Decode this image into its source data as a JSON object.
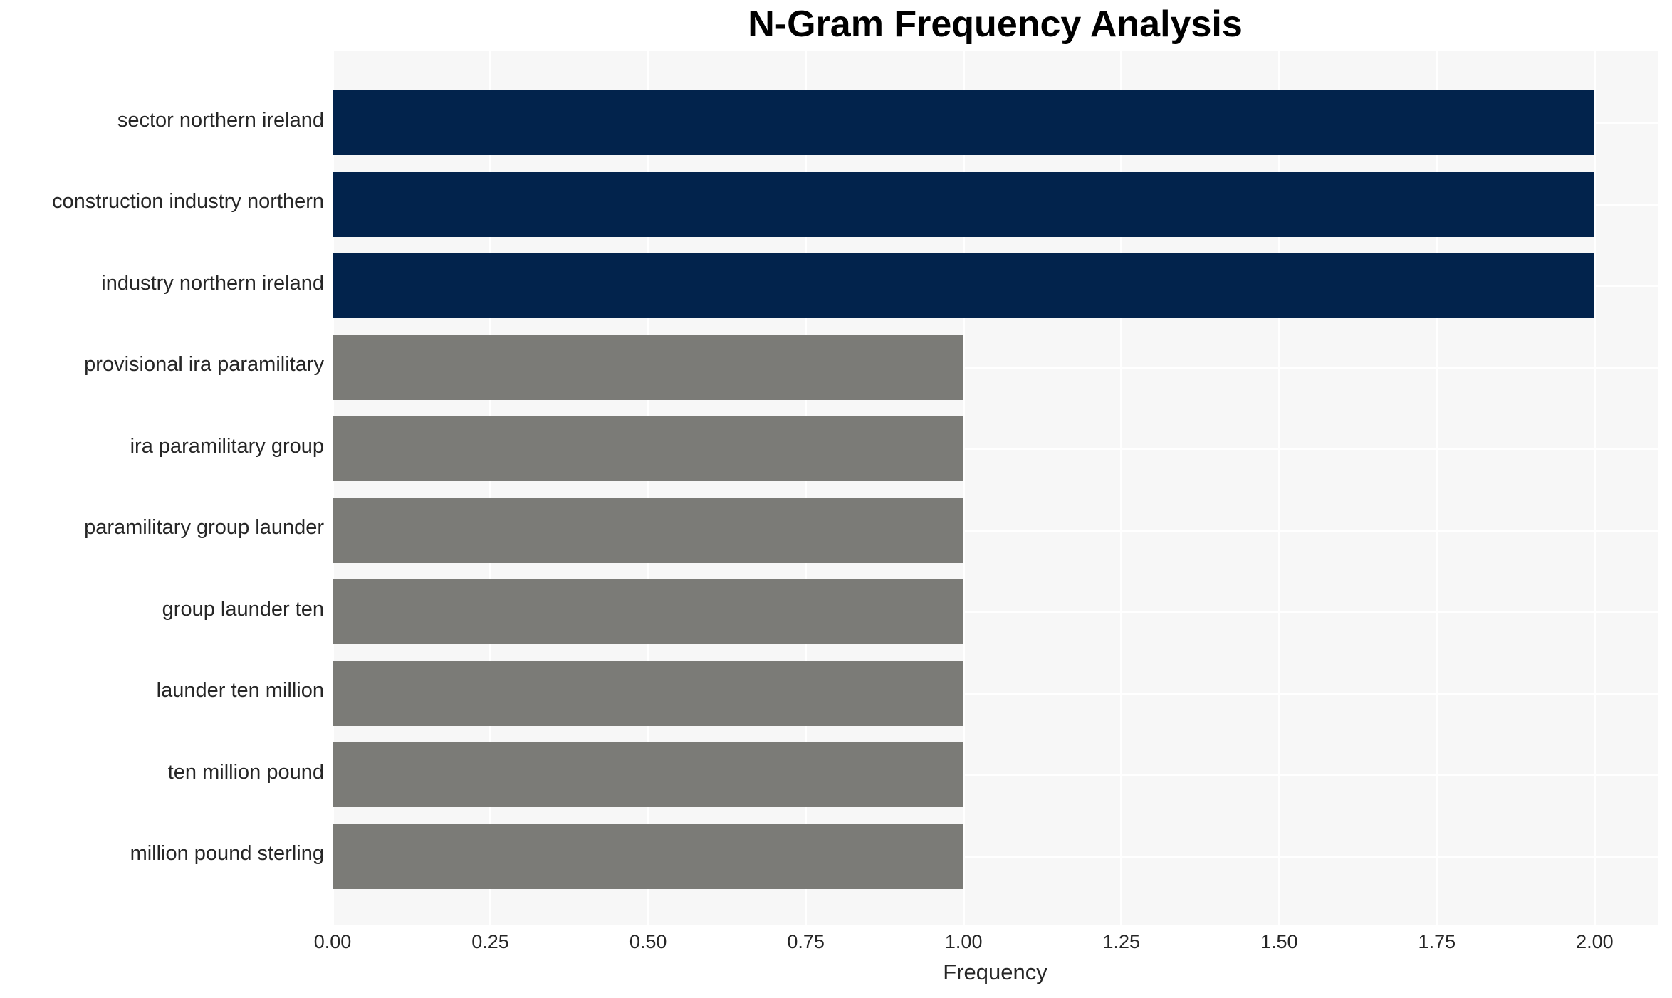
{
  "chart_data": {
    "type": "bar",
    "orientation": "horizontal",
    "title": "N-Gram Frequency Analysis",
    "xlabel": "Frequency",
    "ylabel": "",
    "categories": [
      "sector northern ireland",
      "construction industry northern",
      "industry northern ireland",
      "provisional ira paramilitary",
      "ira paramilitary group",
      "paramilitary group launder",
      "group launder ten",
      "launder ten million",
      "ten million pound",
      "million pound sterling"
    ],
    "values": [
      2,
      2,
      2,
      1,
      1,
      1,
      1,
      1,
      1,
      1
    ],
    "bar_colors": [
      "#02234c",
      "#02234c",
      "#02234c",
      "#7b7b77",
      "#7b7b77",
      "#7b7b77",
      "#7b7b77",
      "#7b7b77",
      "#7b7b77",
      "#7b7b77"
    ],
    "xlim": [
      0,
      2.1
    ],
    "xticks": [
      0,
      0.25,
      0.5,
      0.75,
      1,
      1.25,
      1.5,
      1.75,
      2
    ],
    "xtick_labels": [
      "0.00",
      "0.25",
      "0.50",
      "0.75",
      "1.00",
      "1.25",
      "1.50",
      "1.75",
      "2.00"
    ],
    "grid": true,
    "legend": false,
    "style": {
      "plot_background": "#f7f7f7",
      "figure_background": "#ffffff",
      "grid_color": "#ffffff",
      "tick_text_color": "#262626",
      "title_color": "#000000",
      "accent_dark": "#02234c",
      "accent_gray": "#7b7b77"
    }
  }
}
